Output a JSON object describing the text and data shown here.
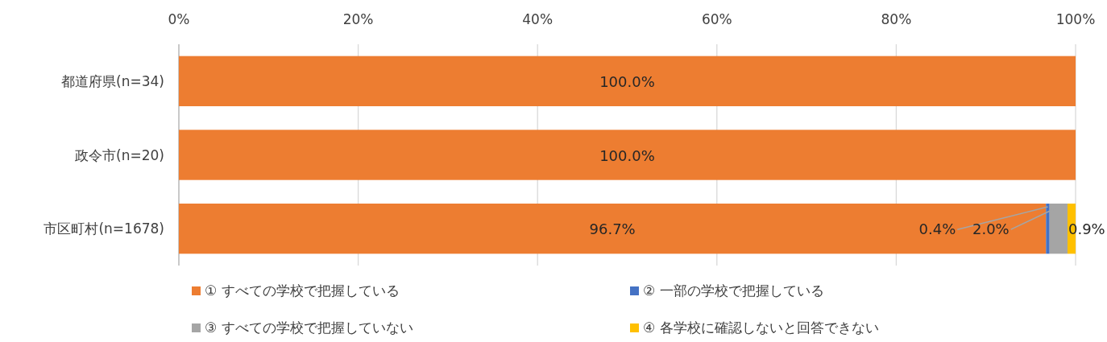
{
  "chart_data": {
    "type": "bar",
    "orientation": "horizontal",
    "stacked": true,
    "categories": [
      "都道府県(n=34)",
      "政令市(n=20)",
      "市区町村(n=1678)"
    ],
    "series": [
      {
        "name": "① すべての学校で把握している",
        "color": "#ed7d31",
        "values": [
          100.0,
          100.0,
          96.7
        ],
        "value_labels": [
          "100.0%",
          "100.0%",
          "96.7%"
        ]
      },
      {
        "name": "② 一部の学校で把握している",
        "color": "#4472c4",
        "values": [
          0,
          0,
          0.4
        ],
        "value_labels": [
          null,
          null,
          "0.4%"
        ]
      },
      {
        "name": "③ すべての学校で把握していない",
        "color": "#a5a5a5",
        "values": [
          0,
          0,
          2.0
        ],
        "value_labels": [
          null,
          null,
          "2.0%"
        ]
      },
      {
        "name": "④ 各学校に確認しないと回答できない",
        "color": "#ffc000",
        "values": [
          0,
          0,
          0.9
        ],
        "value_labels": [
          null,
          null,
          "0.9%"
        ]
      }
    ],
    "xlim": [
      0,
      100
    ],
    "xticks": [
      {
        "value": 0,
        "label": "0%"
      },
      {
        "value": 20,
        "label": "20%"
      },
      {
        "value": 40,
        "label": "40%"
      },
      {
        "value": 60,
        "label": "60%"
      },
      {
        "value": 80,
        "label": "80%"
      },
      {
        "value": 100,
        "label": "100%"
      }
    ],
    "grid": "x",
    "legend": "bottom"
  }
}
